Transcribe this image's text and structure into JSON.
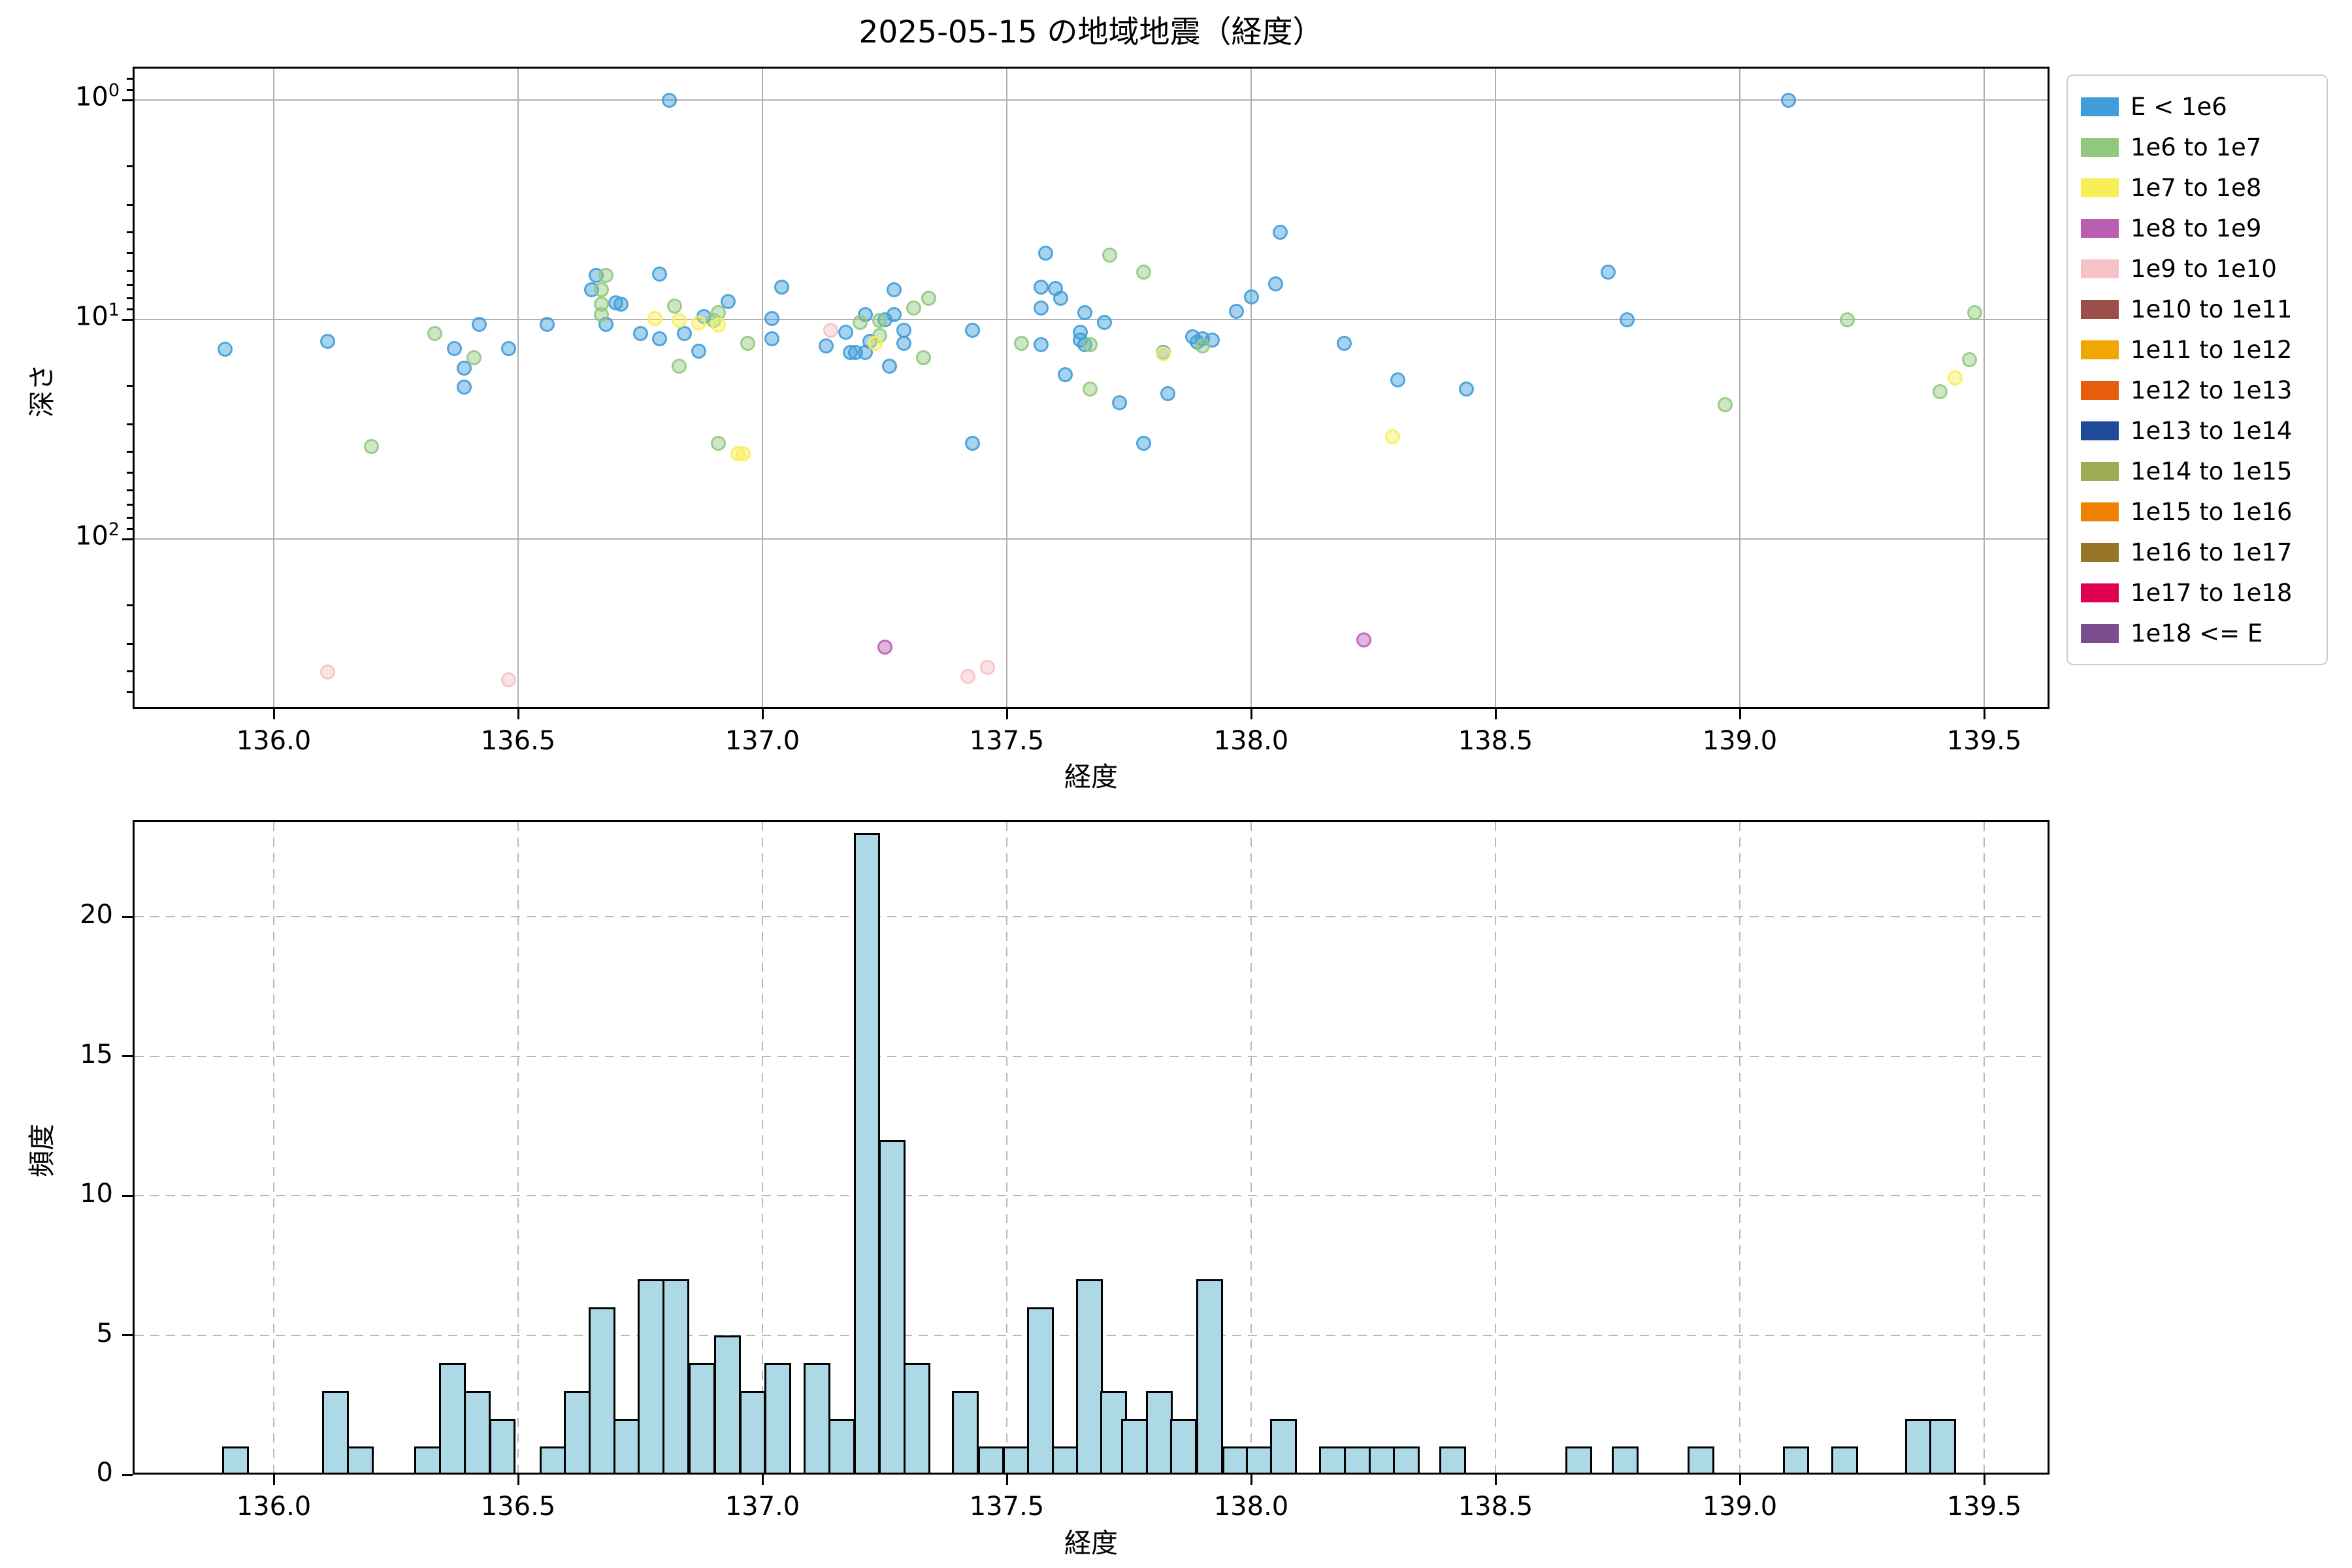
{
  "title": "2025-05-15 の地域地震（経度）",
  "scatter": {
    "xlabel": "経度",
    "ylabel": "深さ",
    "xticks": [
      {
        "label": "136.0",
        "value": 136.0
      },
      {
        "label": "136.5",
        "value": 136.5
      },
      {
        "label": "137.0",
        "value": 137.0
      },
      {
        "label": "137.5",
        "value": 137.5
      },
      {
        "label": "138.0",
        "value": 138.0
      },
      {
        "label": "138.5",
        "value": 138.5
      },
      {
        "label": "139.0",
        "value": 139.0
      },
      {
        "label": "139.5",
        "value": 139.5
      }
    ],
    "yticks": [
      {
        "base": "10",
        "exp": "0",
        "value": 1
      },
      {
        "base": "10",
        "exp": "1",
        "value": 10
      },
      {
        "base": "10",
        "exp": "2",
        "value": 100
      }
    ]
  },
  "histogram": {
    "xlabel": "経度",
    "ylabel": "頻度",
    "xticks": [
      {
        "label": "136.0",
        "value": 136.0
      },
      {
        "label": "136.5",
        "value": 136.5
      },
      {
        "label": "137.0",
        "value": 137.0
      },
      {
        "label": "137.5",
        "value": 137.5
      },
      {
        "label": "138.0",
        "value": 138.0
      },
      {
        "label": "138.5",
        "value": 138.5
      },
      {
        "label": "139.0",
        "value": 139.0
      },
      {
        "label": "139.5",
        "value": 139.5
      }
    ],
    "yticks": [
      {
        "label": "0",
        "value": 0
      },
      {
        "label": "5",
        "value": 5
      },
      {
        "label": "10",
        "value": 10
      },
      {
        "label": "15",
        "value": 15
      },
      {
        "label": "20",
        "value": 20
      }
    ]
  },
  "legend": {
    "items": [
      {
        "label": "E < 1e6",
        "color": "#3e9dda"
      },
      {
        "label": "1e6 to 1e7",
        "color": "#90c97e"
      },
      {
        "label": "1e7 to 1e8",
        "color": "#f8ee58"
      },
      {
        "label": "1e8 to 1e9",
        "color": "#bb5eb1"
      },
      {
        "label": "1e9 to 1e10",
        "color": "#f6c2c5"
      },
      {
        "label": "1e10 to 1e11",
        "color": "#9c4f49"
      },
      {
        "label": "1e11 to 1e12",
        "color": "#f1a702"
      },
      {
        "label": "1e12 to 1e13",
        "color": "#e55d0d"
      },
      {
        "label": "1e13 to 1e14",
        "color": "#1f4b99"
      },
      {
        "label": "1e14 to 1e15",
        "color": "#9cad56"
      },
      {
        "label": "1e15 to 1e16",
        "color": "#ef8103"
      },
      {
        "label": "1e16 to 1e17",
        "color": "#967428"
      },
      {
        "label": "1e17 to 1e18",
        "color": "#df0051"
      },
      {
        "label": "1e18 <= E",
        "color": "#7c4d8d"
      }
    ]
  },
  "chart_data": [
    {
      "type": "scatter",
      "title": "2025-05-15 の地域地震（経度）",
      "xlabel": "経度",
      "ylabel": "深さ",
      "x_range": [
        135.69,
        139.63
      ],
      "y_scale": "log",
      "y_inverted": true,
      "y_range": [
        0.7,
        594
      ],
      "grid": true,
      "legend_position": "outside-right",
      "series": [
        {
          "name": "E < 1e6",
          "color": "#3e9dda",
          "points": [
            [
              135.9,
              13.7
            ],
            [
              136.11,
              12.6
            ],
            [
              136.37,
              13.6
            ],
            [
              136.39,
              16.7
            ],
            [
              136.39,
              20.3
            ],
            [
              136.42,
              10.5
            ],
            [
              136.48,
              13.6
            ],
            [
              136.56,
              10.5
            ],
            [
              136.65,
              7.3
            ],
            [
              136.66,
              6.3
            ],
            [
              136.68,
              10.5
            ],
            [
              136.7,
              8.4
            ],
            [
              136.71,
              8.5
            ],
            [
              136.75,
              11.6
            ],
            [
              136.79,
              6.2
            ],
            [
              136.79,
              12.2
            ],
            [
              136.81,
              1.0
            ],
            [
              136.84,
              11.6
            ],
            [
              136.87,
              13.9
            ],
            [
              136.88,
              9.7
            ],
            [
              136.93,
              8.3
            ],
            [
              137.02,
              9.9
            ],
            [
              137.02,
              12.2
            ],
            [
              137.04,
              7.1
            ],
            [
              137.13,
              13.2
            ],
            [
              137.17,
              11.4
            ],
            [
              137.18,
              14.1
            ],
            [
              137.19,
              14.1
            ],
            [
              137.21,
              9.5
            ],
            [
              137.21,
              14.1
            ],
            [
              137.22,
              12.6
            ],
            [
              137.25,
              10.0
            ],
            [
              137.26,
              16.3
            ],
            [
              137.27,
              7.3
            ],
            [
              137.27,
              9.5
            ],
            [
              137.29,
              11.2
            ],
            [
              137.29,
              12.8
            ],
            [
              137.43,
              11.2
            ],
            [
              137.43,
              36.6
            ],
            [
              137.57,
              8.9
            ],
            [
              137.57,
              7.1
            ],
            [
              137.57,
              13.0
            ],
            [
              137.58,
              5.0
            ],
            [
              137.6,
              7.2
            ],
            [
              137.61,
              8.0
            ],
            [
              137.62,
              17.9
            ],
            [
              137.65,
              11.4
            ],
            [
              137.65,
              12.4
            ],
            [
              137.66,
              9.3
            ],
            [
              137.66,
              13.0
            ],
            [
              137.7,
              10.3
            ],
            [
              137.73,
              23.9
            ],
            [
              137.78,
              36.6
            ],
            [
              137.82,
              14.1
            ],
            [
              137.83,
              21.8
            ],
            [
              137.88,
              12.0
            ],
            [
              137.89,
              12.7
            ],
            [
              137.9,
              12.2
            ],
            [
              137.92,
              12.4
            ],
            [
              137.97,
              9.2
            ],
            [
              138.0,
              7.9
            ],
            [
              138.05,
              6.9
            ],
            [
              138.06,
              4.0
            ],
            [
              138.19,
              12.8
            ],
            [
              138.3,
              18.9
            ],
            [
              138.44,
              20.8
            ],
            [
              138.73,
              6.1
            ],
            [
              138.77,
              10.0
            ],
            [
              139.1,
              1.0
            ]
          ]
        },
        {
          "name": "1e6 to 1e7",
          "color": "#90c97e",
          "points": [
            [
              136.2,
              38.0
            ],
            [
              136.33,
              11.6
            ],
            [
              136.41,
              14.9
            ],
            [
              136.67,
              7.3
            ],
            [
              136.67,
              8.5
            ],
            [
              136.67,
              9.5
            ],
            [
              136.68,
              6.3
            ],
            [
              136.82,
              8.7
            ],
            [
              136.83,
              16.3
            ],
            [
              136.9,
              10.1
            ],
            [
              136.91,
              9.3
            ],
            [
              136.91,
              36.6
            ],
            [
              136.97,
              12.8
            ],
            [
              137.2,
              10.3
            ],
            [
              137.24,
              10.1
            ],
            [
              137.24,
              11.8
            ],
            [
              137.31,
              8.9
            ],
            [
              137.33,
              14.9
            ],
            [
              137.34,
              8.0
            ],
            [
              137.53,
              12.8
            ],
            [
              137.67,
              13.0
            ],
            [
              137.67,
              20.8
            ],
            [
              137.71,
              5.1
            ],
            [
              137.78,
              6.1
            ],
            [
              137.9,
              13.2
            ],
            [
              138.97,
              24.4
            ],
            [
              139.22,
              10.0
            ],
            [
              139.41,
              21.3
            ],
            [
              139.47,
              15.2
            ],
            [
              139.48,
              9.3
            ]
          ]
        },
        {
          "name": "1e7 to 1e8",
          "color": "#f8ee58",
          "points": [
            [
              136.78,
              9.9
            ],
            [
              136.83,
              10.1
            ],
            [
              136.87,
              10.4
            ],
            [
              136.91,
              10.6
            ],
            [
              136.95,
              41.0
            ],
            [
              136.96,
              41.0
            ],
            [
              137.23,
              12.8
            ],
            [
              137.82,
              14.3
            ],
            [
              138.29,
              34.1
            ],
            [
              139.44,
              18.5
            ]
          ]
        },
        {
          "name": "1e8 to 1e9",
          "color": "#bb5eb1",
          "points": [
            [
              137.25,
              310
            ],
            [
              138.23,
              289
            ]
          ]
        },
        {
          "name": "1e9 to 1e10",
          "color": "#f6c2c5",
          "points": [
            [
              136.11,
              402
            ],
            [
              136.48,
              437
            ],
            [
              137.14,
              11.2
            ],
            [
              137.42,
              424
            ],
            [
              137.46,
              385
            ]
          ]
        }
      ]
    },
    {
      "type": "bar",
      "subtype": "histogram",
      "xlabel": "経度",
      "ylabel": "頻度",
      "x_range": [
        135.69,
        139.63
      ],
      "y_range": [
        0,
        23.5
      ],
      "grid": "dashed",
      "bar_color": "#add8e6",
      "bar_edge_color": "#000000",
      "bin_width": 0.0506,
      "bars": [
        [
          135.922,
          1
        ],
        [
          136.126,
          3
        ],
        [
          136.177,
          1
        ],
        [
          136.315,
          1
        ],
        [
          136.366,
          4
        ],
        [
          136.417,
          3
        ],
        [
          136.468,
          2
        ],
        [
          136.571,
          1
        ],
        [
          136.621,
          3
        ],
        [
          136.672,
          6
        ],
        [
          136.722,
          2
        ],
        [
          136.772,
          7
        ],
        [
          136.823,
          7
        ],
        [
          136.876,
          4
        ],
        [
          136.929,
          5
        ],
        [
          136.98,
          3
        ],
        [
          137.031,
          4
        ],
        [
          137.112,
          4
        ],
        [
          137.163,
          2
        ],
        [
          137.214,
          23
        ],
        [
          137.265,
          12
        ],
        [
          137.316,
          4
        ],
        [
          137.415,
          3
        ],
        [
          137.468,
          1
        ],
        [
          137.519,
          1
        ],
        [
          137.569,
          6
        ],
        [
          137.619,
          1
        ],
        [
          137.669,
          7
        ],
        [
          137.719,
          3
        ],
        [
          137.761,
          2
        ],
        [
          137.812,
          3
        ],
        [
          137.862,
          2
        ],
        [
          137.915,
          7
        ],
        [
          137.969,
          1
        ],
        [
          138.017,
          1
        ],
        [
          138.066,
          2
        ],
        [
          138.167,
          1
        ],
        [
          138.217,
          1
        ],
        [
          138.268,
          1
        ],
        [
          138.318,
          1
        ],
        [
          138.413,
          1
        ],
        [
          138.67,
          1
        ],
        [
          138.765,
          1
        ],
        [
          138.92,
          1
        ],
        [
          139.115,
          1
        ],
        [
          139.215,
          1
        ],
        [
          139.365,
          2
        ],
        [
          139.415,
          2
        ]
      ]
    }
  ]
}
